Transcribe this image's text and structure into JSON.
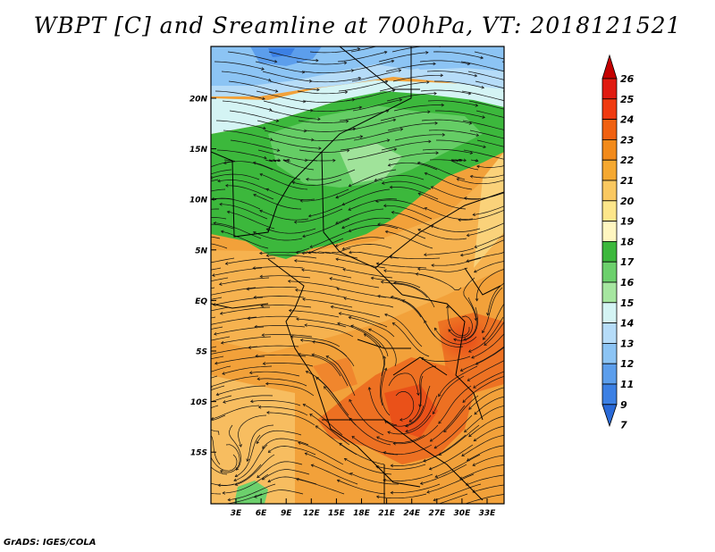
{
  "title": "WBPT [C] and Sreamline at 700hPa, VT: 2018121521",
  "footer": "GrADS: IGES/COLA",
  "map": {
    "lat_labels": [
      "20N",
      "15N",
      "10N",
      "5N",
      "EQ",
      "5S",
      "10S",
      "15S"
    ],
    "lon_labels": [
      "3E",
      "6E",
      "9E",
      "12E",
      "15E",
      "18E",
      "21E",
      "24E",
      "27E",
      "30E",
      "33E"
    ]
  },
  "colorbar": {
    "levels": [
      "26",
      "25",
      "24",
      "23",
      "22",
      "21",
      "20",
      "19",
      "18",
      "17",
      "16",
      "15",
      "14",
      "13",
      "12",
      "11",
      "9",
      "7"
    ],
    "colors": [
      "#c40000",
      "#e01a10",
      "#f03a10",
      "#f06010",
      "#f28a1a",
      "#f5a830",
      "#fac860",
      "#fde68a",
      "#fff6c0",
      "#3cb83c",
      "#6cd06c",
      "#a6e6a0",
      "#d4f4f4",
      "#b6dcf8",
      "#8cc4f4",
      "#5c9eec",
      "#3c80e4",
      "#2a6ad8"
    ]
  }
}
